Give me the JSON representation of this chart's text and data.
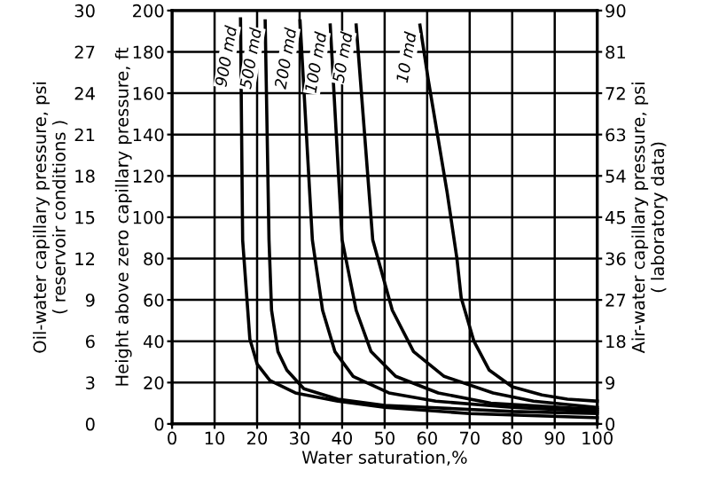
{
  "chart_data": {
    "type": "line",
    "xlabel": "Water saturation,%",
    "ylabel": "Height above zero capillary pressure, ft",
    "y2label": "Oil-water capillary pressure, psi\n( reservoir conditions )",
    "y3label": "Air-water capillary pressure, psi\n( laboratory data)",
    "xlim": [
      0,
      100
    ],
    "xticks": [
      0,
      10,
      20,
      30,
      40,
      50,
      60,
      70,
      80,
      90,
      100
    ],
    "ylim": [
      0,
      200
    ],
    "yticks": [
      0,
      20,
      40,
      60,
      80,
      100,
      120,
      140,
      160,
      180,
      200
    ],
    "y2lim": [
      0,
      30
    ],
    "y2ticks": [
      0,
      3,
      6,
      9,
      12,
      15,
      18,
      21,
      24,
      27,
      30
    ],
    "y3lim": [
      0,
      90
    ],
    "y3ticks": [
      0,
      9,
      18,
      27,
      36,
      45,
      54,
      63,
      72,
      81,
      90
    ],
    "grid": true,
    "marker": "none",
    "line_style": "solid",
    "legend": false,
    "series": [
      {
        "name": "900 md",
        "color": "#000000",
        "x": [
          16.1,
          16.6,
          18.3,
          20,
          23,
          29,
          39,
          50,
          70,
          100
        ],
        "values": [
          196,
          89,
          41,
          29,
          21,
          15,
          11,
          8,
          5,
          3
        ]
      },
      {
        "name": "500 md",
        "color": "#000000",
        "x": [
          21.9,
          22.8,
          23.4,
          24.9,
          27,
          31,
          39,
          50,
          60,
          80,
          100
        ],
        "values": [
          195,
          89,
          55,
          35,
          26,
          17,
          12,
          9,
          8,
          6,
          5
        ]
      },
      {
        "name": "200 md",
        "color": "#000000",
        "x": [
          30.1,
          33,
          35.4,
          38.3,
          42.6,
          51,
          62,
          80,
          100
        ],
        "values": [
          195,
          89,
          55,
          35,
          23,
          15,
          11,
          8,
          6
        ]
      },
      {
        "name": "100 md",
        "color": "#000000",
        "x": [
          37.2,
          40,
          43.3,
          46.8,
          52.6,
          62.6,
          75,
          100
        ],
        "values": [
          193,
          89,
          55,
          35,
          23,
          15,
          10,
          7
        ]
      },
      {
        "name": "50 md",
        "color": "#000000",
        "x": [
          43.3,
          47.2,
          51.8,
          56.8,
          64,
          75.5,
          85,
          100
        ],
        "values": [
          193,
          89,
          55,
          35,
          23,
          15,
          11,
          8
        ]
      },
      {
        "name": "10 md",
        "color": "#000000",
        "x": [
          58.3,
          60.3,
          64.7,
          67,
          68,
          71,
          74.6,
          80,
          87,
          93,
          100
        ],
        "values": [
          193,
          166,
          112,
          80,
          61,
          40,
          26,
          18,
          14,
          12,
          11
        ]
      }
    ]
  }
}
